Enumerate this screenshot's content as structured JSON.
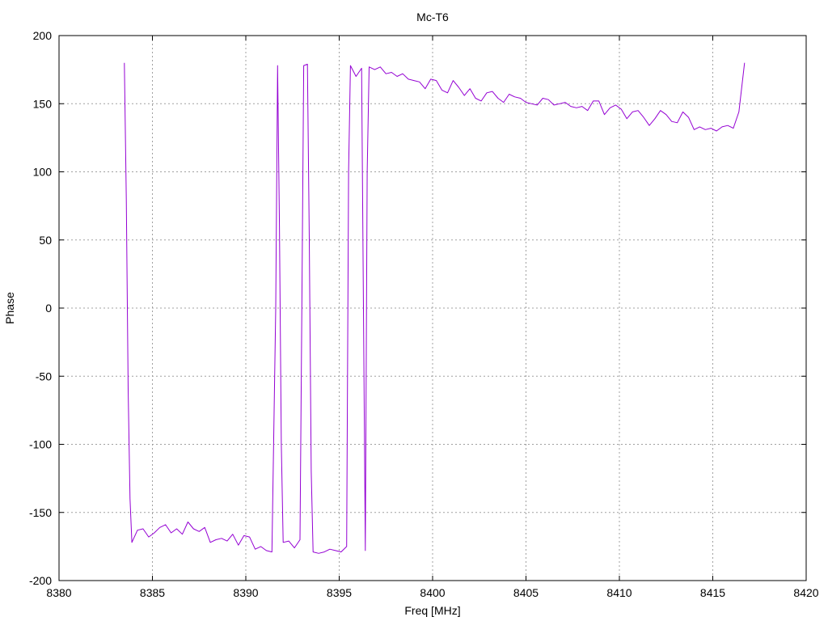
{
  "chart_data": {
    "type": "line",
    "title": "Mc-T6",
    "xlabel": "Freq [MHz]",
    "ylabel": "Phase",
    "xlim": [
      8380,
      8420
    ],
    "ylim": [
      -200,
      200
    ],
    "xticks": [
      8380,
      8385,
      8390,
      8395,
      8400,
      8405,
      8410,
      8415,
      8420
    ],
    "yticks": [
      -200,
      -150,
      -100,
      -50,
      0,
      50,
      100,
      150,
      200
    ],
    "grid": true,
    "line_color": "#9400d3",
    "series": [
      {
        "points": [
          [
            8383.5,
            180
          ],
          [
            8383.6,
            80
          ],
          [
            8383.7,
            -60
          ],
          [
            8383.8,
            -140
          ],
          [
            8383.9,
            -172
          ],
          [
            8384.2,
            -163
          ],
          [
            8384.5,
            -162
          ],
          [
            8384.8,
            -168
          ],
          [
            8385.1,
            -165
          ],
          [
            8385.4,
            -161
          ],
          [
            8385.7,
            -159
          ],
          [
            8386.0,
            -165
          ],
          [
            8386.3,
            -162
          ],
          [
            8386.6,
            -166
          ],
          [
            8386.9,
            -157
          ],
          [
            8387.2,
            -162
          ],
          [
            8387.5,
            -164
          ],
          [
            8387.8,
            -161
          ],
          [
            8388.1,
            -172
          ],
          [
            8388.4,
            -170
          ],
          [
            8388.7,
            -169
          ],
          [
            8389.0,
            -171
          ],
          [
            8389.3,
            -166
          ],
          [
            8389.6,
            -174
          ],
          [
            8389.9,
            -167
          ],
          [
            8390.2,
            -168
          ],
          [
            8390.5,
            -177
          ],
          [
            8390.8,
            -175
          ],
          [
            8391.1,
            -178
          ],
          [
            8391.4,
            -179
          ],
          [
            8391.6,
            0
          ],
          [
            8391.7,
            178
          ],
          [
            8391.8,
            60
          ],
          [
            8391.9,
            -100
          ],
          [
            8392.0,
            -172
          ],
          [
            8392.3,
            -171
          ],
          [
            8392.6,
            -176
          ],
          [
            8392.9,
            -170
          ],
          [
            8393.0,
            0
          ],
          [
            8393.1,
            178
          ],
          [
            8393.3,
            179
          ],
          [
            8393.4,
            50
          ],
          [
            8393.5,
            -120
          ],
          [
            8393.6,
            -179
          ],
          [
            8393.9,
            -180
          ],
          [
            8394.2,
            -179
          ],
          [
            8394.5,
            -177
          ],
          [
            8394.8,
            -178
          ],
          [
            8395.1,
            -179
          ],
          [
            8395.4,
            -175
          ],
          [
            8395.5,
            100
          ],
          [
            8395.6,
            178
          ],
          [
            8395.9,
            170
          ],
          [
            8396.2,
            176
          ],
          [
            8396.4,
            -178
          ],
          [
            8396.5,
            100
          ],
          [
            8396.6,
            177
          ],
          [
            8396.9,
            175
          ],
          [
            8397.2,
            177
          ],
          [
            8397.5,
            172
          ],
          [
            8397.8,
            173
          ],
          [
            8398.1,
            170
          ],
          [
            8398.4,
            172
          ],
          [
            8398.7,
            168
          ],
          [
            8399.0,
            167
          ],
          [
            8399.3,
            166
          ],
          [
            8399.6,
            161
          ],
          [
            8399.9,
            168
          ],
          [
            8400.2,
            167
          ],
          [
            8400.5,
            160
          ],
          [
            8400.8,
            158
          ],
          [
            8401.1,
            167
          ],
          [
            8401.4,
            162
          ],
          [
            8401.7,
            156
          ],
          [
            8402.0,
            161
          ],
          [
            8402.3,
            154
          ],
          [
            8402.6,
            152
          ],
          [
            8402.9,
            158
          ],
          [
            8403.2,
            159
          ],
          [
            8403.5,
            154
          ],
          [
            8403.8,
            151
          ],
          [
            8404.1,
            157
          ],
          [
            8404.4,
            155
          ],
          [
            8404.7,
            154
          ],
          [
            8405.0,
            151
          ],
          [
            8405.3,
            150
          ],
          [
            8405.6,
            149
          ],
          [
            8405.9,
            154
          ],
          [
            8406.2,
            153
          ],
          [
            8406.5,
            149
          ],
          [
            8406.8,
            150
          ],
          [
            8407.1,
            151
          ],
          [
            8407.4,
            148
          ],
          [
            8407.7,
            147
          ],
          [
            8408.0,
            148
          ],
          [
            8408.3,
            145
          ],
          [
            8408.6,
            152
          ],
          [
            8408.9,
            152
          ],
          [
            8409.2,
            142
          ],
          [
            8409.5,
            147
          ],
          [
            8409.8,
            149
          ],
          [
            8410.1,
            146
          ],
          [
            8410.4,
            139
          ],
          [
            8410.7,
            144
          ],
          [
            8411.0,
            145
          ],
          [
            8411.3,
            140
          ],
          [
            8411.6,
            134
          ],
          [
            8411.9,
            139
          ],
          [
            8412.2,
            145
          ],
          [
            8412.5,
            142
          ],
          [
            8412.8,
            137
          ],
          [
            8413.1,
            136
          ],
          [
            8413.4,
            144
          ],
          [
            8413.7,
            140
          ],
          [
            8414.0,
            131
          ],
          [
            8414.3,
            133
          ],
          [
            8414.6,
            131
          ],
          [
            8414.9,
            132
          ],
          [
            8415.2,
            130
          ],
          [
            8415.5,
            133
          ],
          [
            8415.8,
            134
          ],
          [
            8416.1,
            132
          ],
          [
            8416.4,
            144
          ],
          [
            8416.7,
            180
          ]
        ]
      }
    ]
  }
}
